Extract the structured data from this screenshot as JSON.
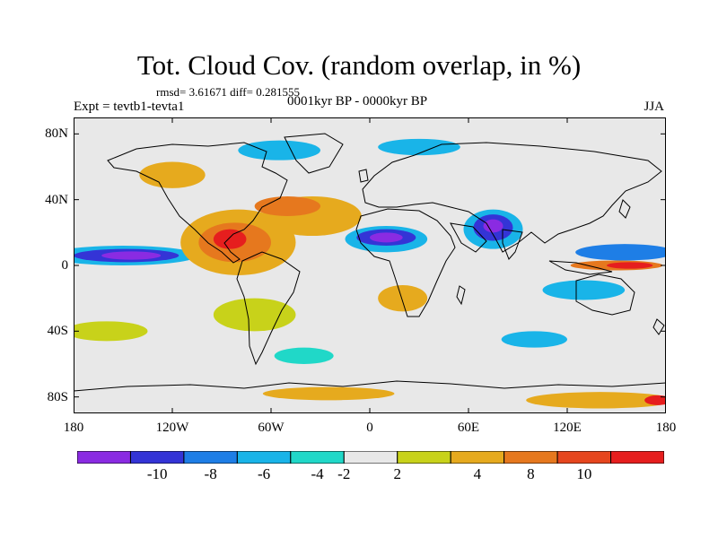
{
  "title": "Tot. Cloud Cov. (random overlap, in %)",
  "stats": "rmsd= 3.61671 diff= 0.281555",
  "left_label": "Expt = tevtb1-tevta1",
  "center_label": "0001kyr BP - 0000kyr BP",
  "right_label": "JJA",
  "lat_ticks": [
    "80N",
    "40N",
    "0",
    "40S",
    "80S"
  ],
  "lon_ticks": [
    "180",
    "120W",
    "60W",
    "0",
    "60E",
    "120E",
    "180"
  ],
  "colorbar": {
    "colors": [
      "#8a2be2",
      "#3434d6",
      "#1e7ee6",
      "#19b4e8",
      "#20d8c8",
      "#e8e8e8",
      "#c8d21a",
      "#e6aa1e",
      "#e6781e",
      "#e6461e",
      "#e61e1e"
    ],
    "labels": [
      "-10",
      "-8",
      "-6",
      "-4",
      "-2",
      "2",
      "4",
      "8",
      "10"
    ]
  },
  "map": {
    "background": "#e8e8e8",
    "blobs": [
      {
        "lon": -150,
        "lat": 6,
        "rx": 45,
        "ry": 6,
        "level": -4
      },
      {
        "lon": -148,
        "lat": 6,
        "rx": 32,
        "ry": 4,
        "level": -8
      },
      {
        "lon": -145,
        "lat": 6,
        "rx": 18,
        "ry": 2.5,
        "level": -10
      },
      {
        "lon": -80,
        "lat": 14,
        "rx": 35,
        "ry": 20,
        "level": 4
      },
      {
        "lon": -82,
        "lat": 14,
        "rx": 22,
        "ry": 12,
        "level": 8
      },
      {
        "lon": -85,
        "lat": 16,
        "rx": 10,
        "ry": 6,
        "level": 10
      },
      {
        "lon": -35,
        "lat": 30,
        "rx": 30,
        "ry": 12,
        "level": 4
      },
      {
        "lon": -50,
        "lat": 36,
        "rx": 20,
        "ry": 6,
        "level": 8
      },
      {
        "lon": 10,
        "lat": 16,
        "rx": 25,
        "ry": 8,
        "level": -4
      },
      {
        "lon": 10,
        "lat": 17,
        "rx": 18,
        "ry": 5,
        "level": -8
      },
      {
        "lon": 10,
        "lat": 17,
        "rx": 10,
        "ry": 3,
        "level": -10
      },
      {
        "lon": 75,
        "lat": 22,
        "rx": 18,
        "ry": 12,
        "level": -4
      },
      {
        "lon": 75,
        "lat": 23,
        "rx": 12,
        "ry": 8,
        "level": -8
      },
      {
        "lon": 75,
        "lat": 24,
        "rx": 6,
        "ry": 4,
        "level": -10
      },
      {
        "lon": 155,
        "lat": 8,
        "rx": 30,
        "ry": 5,
        "level": -6
      },
      {
        "lon": 150,
        "lat": 0,
        "rx": 28,
        "ry": 3,
        "level": 8
      },
      {
        "lon": 158,
        "lat": 0,
        "rx": 14,
        "ry": 2,
        "level": 10
      },
      {
        "lon": -55,
        "lat": 70,
        "rx": 25,
        "ry": 6,
        "level": -4
      },
      {
        "lon": 30,
        "lat": 72,
        "rx": 25,
        "ry": 5,
        "level": -4
      },
      {
        "lon": -120,
        "lat": 55,
        "rx": 20,
        "ry": 8,
        "level": 4
      },
      {
        "lon": -25,
        "lat": -78,
        "rx": 40,
        "ry": 4,
        "level": 4
      },
      {
        "lon": 140,
        "lat": -82,
        "rx": 45,
        "ry": 5,
        "level": 4
      },
      {
        "lon": 175,
        "lat": -82,
        "rx": 8,
        "ry": 3,
        "level": 10
      },
      {
        "lon": 20,
        "lat": -20,
        "rx": 15,
        "ry": 8,
        "level": 4
      },
      {
        "lon": 130,
        "lat": -15,
        "rx": 25,
        "ry": 6,
        "level": -4
      },
      {
        "lon": -70,
        "lat": -30,
        "rx": 25,
        "ry": 10,
        "level": 2
      },
      {
        "lon": -160,
        "lat": -40,
        "rx": 25,
        "ry": 6,
        "level": 2
      },
      {
        "lon": 100,
        "lat": -45,
        "rx": 20,
        "ry": 5,
        "level": -4
      },
      {
        "lon": -40,
        "lat": -55,
        "rx": 18,
        "ry": 5,
        "level": -2
      }
    ]
  }
}
